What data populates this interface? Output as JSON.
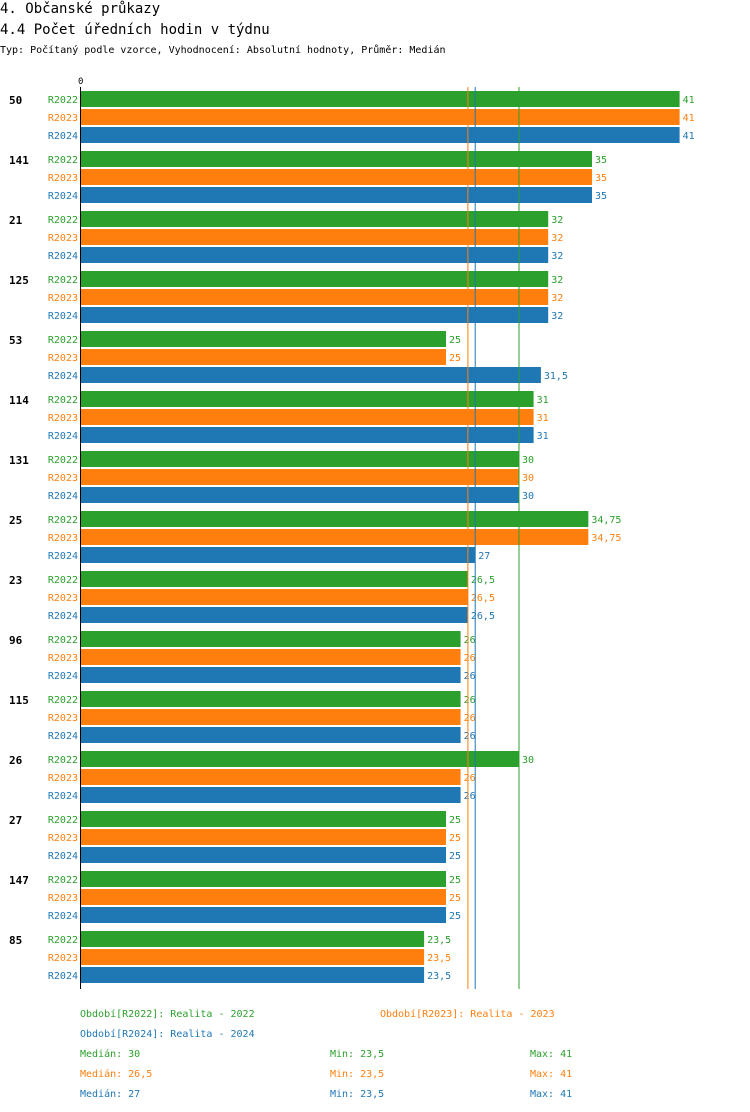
{
  "header": {
    "title": "4. Občanské průkazy",
    "subtitle": "4.4 Počet úředních hodin v týdnu",
    "info": "Typ: Počítaný podle vzorce, Vyhodnocení: Absolutní hodnoty, Průměr: Medián"
  },
  "colors": {
    "R2022": "#2ca02c",
    "R2023": "#ff7f0e",
    "R2024": "#1f77b4"
  },
  "chart_data": {
    "type": "bar",
    "orientation": "horizontal",
    "axis_zero_label": "0",
    "xlim": [
      0,
      41
    ],
    "series_names": [
      "R2022",
      "R2023",
      "R2024"
    ],
    "categories": [
      "50",
      "141",
      "21",
      "125",
      "53",
      "114",
      "131",
      "25",
      "23",
      "96",
      "115",
      "26",
      "27",
      "147",
      "85"
    ],
    "values": [
      [
        41,
        41,
        41
      ],
      [
        35,
        35,
        35
      ],
      [
        32,
        32,
        32
      ],
      [
        32,
        32,
        32
      ],
      [
        25,
        25,
        31.5
      ],
      [
        31,
        31,
        31
      ],
      [
        30,
        30,
        30
      ],
      [
        34.75,
        34.75,
        27
      ],
      [
        26.5,
        26.5,
        26.5
      ],
      [
        26,
        26,
        26
      ],
      [
        26,
        26,
        26
      ],
      [
        30,
        26,
        26
      ],
      [
        25,
        25,
        25
      ],
      [
        25,
        25,
        25
      ],
      [
        23.5,
        23.5,
        23.5
      ]
    ],
    "value_labels": [
      [
        "41",
        "41",
        "41"
      ],
      [
        "35",
        "35",
        "35"
      ],
      [
        "32",
        "32",
        "32"
      ],
      [
        "32",
        "32",
        "32"
      ],
      [
        "25",
        "25",
        "31,5"
      ],
      [
        "31",
        "31",
        "31"
      ],
      [
        "30",
        "30",
        "30"
      ],
      [
        "34,75",
        "34,75",
        "27"
      ],
      [
        "26,5",
        "26,5",
        "26,5"
      ],
      [
        "26",
        "26",
        "26"
      ],
      [
        "26",
        "26",
        "26"
      ],
      [
        "30",
        "26",
        "26"
      ],
      [
        "25",
        "25",
        "25"
      ],
      [
        "25",
        "25",
        "25"
      ],
      [
        "23,5",
        "23,5",
        "23,5"
      ]
    ],
    "medians": {
      "R2022": 30,
      "R2023": 26.5,
      "R2024": 27
    }
  },
  "legend": {
    "period_2022": "Období[R2022]: Realita - 2022",
    "period_2023": "Období[R2023]: Realita - 2023",
    "period_2024": "Období[R2024]: Realita - 2024",
    "stats": [
      {
        "median": "Medián: 30",
        "min": "Min: 23,5",
        "max": "Max: 41"
      },
      {
        "median": "Medián: 26,5",
        "min": "Min: 23,5",
        "max": "Max: 41"
      },
      {
        "median": "Medián: 27",
        "min": "Min: 23,5",
        "max": "Max: 41"
      }
    ]
  }
}
